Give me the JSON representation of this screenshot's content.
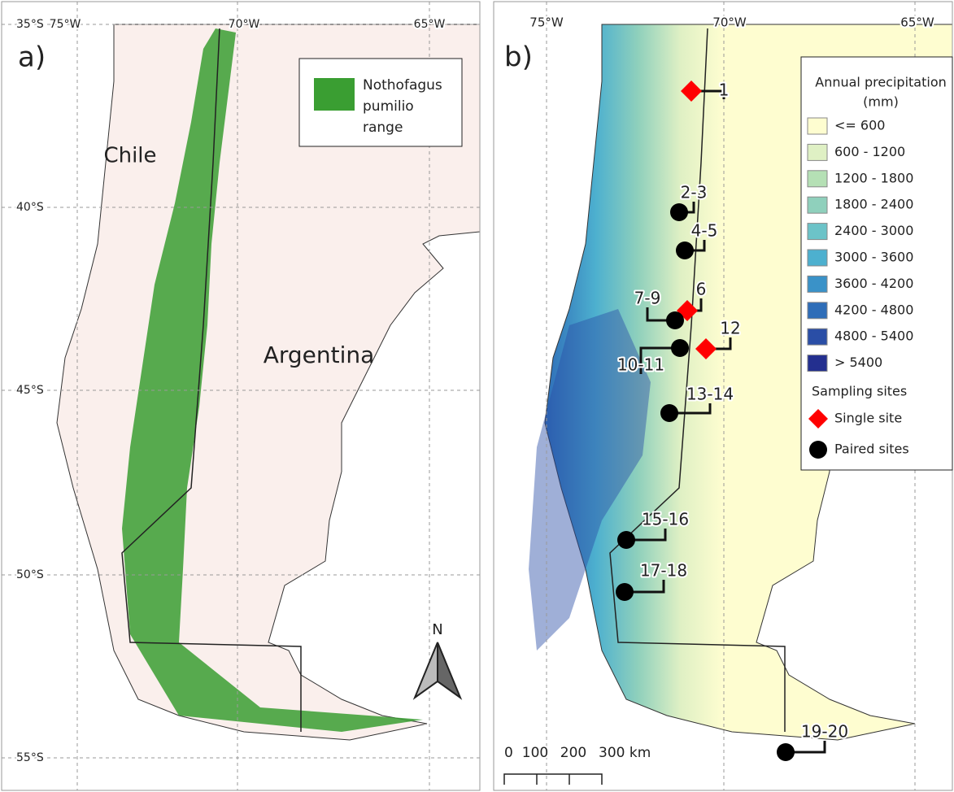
{
  "panel_a": {
    "label": "a)",
    "lat_labels": [
      "35°S",
      "40°S",
      "45°S",
      "50°S",
      "55°S"
    ],
    "lon_labels": [
      "75°W",
      "70°W",
      "65°W"
    ],
    "country_labels": [
      "Chile",
      "Argentina"
    ],
    "legend": {
      "lines": [
        "Nothofagus",
        "pumilio",
        "range"
      ],
      "color": "#3a9e32"
    },
    "north": "N"
  },
  "panel_b": {
    "label": "b)",
    "lon_labels": [
      "75°W",
      "70°W",
      "65°W"
    ],
    "sites": [
      {
        "label": "1",
        "type": "single"
      },
      {
        "label": "2-3",
        "type": "paired"
      },
      {
        "label": "4-5",
        "type": "paired"
      },
      {
        "label": "6",
        "type": "single"
      },
      {
        "label": "7-9",
        "type": "paired"
      },
      {
        "label": "10-11",
        "type": "paired"
      },
      {
        "label": "12",
        "type": "single"
      },
      {
        "label": "13-14",
        "type": "paired"
      },
      {
        "label": "15-16",
        "type": "paired"
      },
      {
        "label": "17-18",
        "type": "paired"
      },
      {
        "label": "19-20",
        "type": "paired"
      }
    ],
    "legend": {
      "title_lines": [
        "Annual precipitation",
        "(mm)"
      ],
      "classes": [
        {
          "label": "<= 600",
          "color": "#fefdd0"
        },
        {
          "label": "600 - 1200",
          "color": "#dff0c4"
        },
        {
          "label": "1200 - 1800",
          "color": "#b5e0b5"
        },
        {
          "label": "1800 - 2400",
          "color": "#8fd0bc"
        },
        {
          "label": "2400 - 3000",
          "color": "#6cc3c8"
        },
        {
          "label": "3000 - 3600",
          "color": "#4db0cf"
        },
        {
          "label": "3600 - 4200",
          "color": "#3a92c8"
        },
        {
          "label": "4200 - 4800",
          "color": "#2e6db8"
        },
        {
          "label": "4800 - 5400",
          "color": "#2a4ea6"
        },
        {
          "label": "> 5400",
          "color": "#232f8f"
        }
      ],
      "sites_title": "Sampling sites",
      "single": "Single site",
      "paired": "Paired sites"
    },
    "scale": [
      "0",
      "100",
      "200",
      "300 km"
    ]
  }
}
